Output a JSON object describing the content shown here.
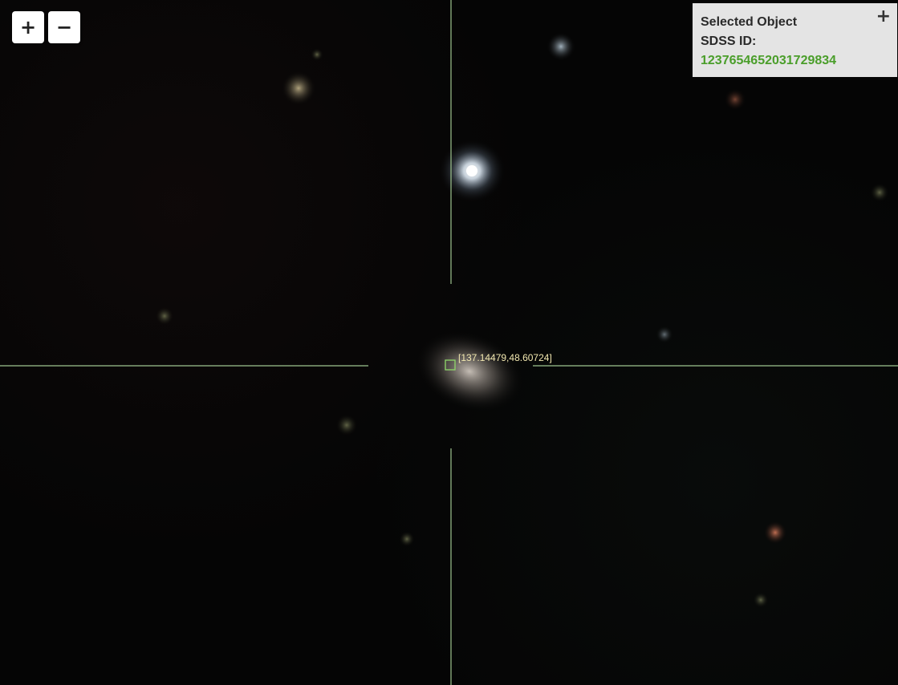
{
  "zoom": {
    "zoom_in_label": "+",
    "zoom_out_label": "−"
  },
  "selected_object": {
    "title": "Selected Object",
    "id_label": "SDSS ID:",
    "id_value": "1237654652031729834",
    "expand_label": "+"
  },
  "target": {
    "coordinates": "[137.14479,48.60724]"
  },
  "colors": {
    "crosshair": "#b9e6a6",
    "marker": "#8fd86a",
    "id_text": "#4a9e2a"
  }
}
